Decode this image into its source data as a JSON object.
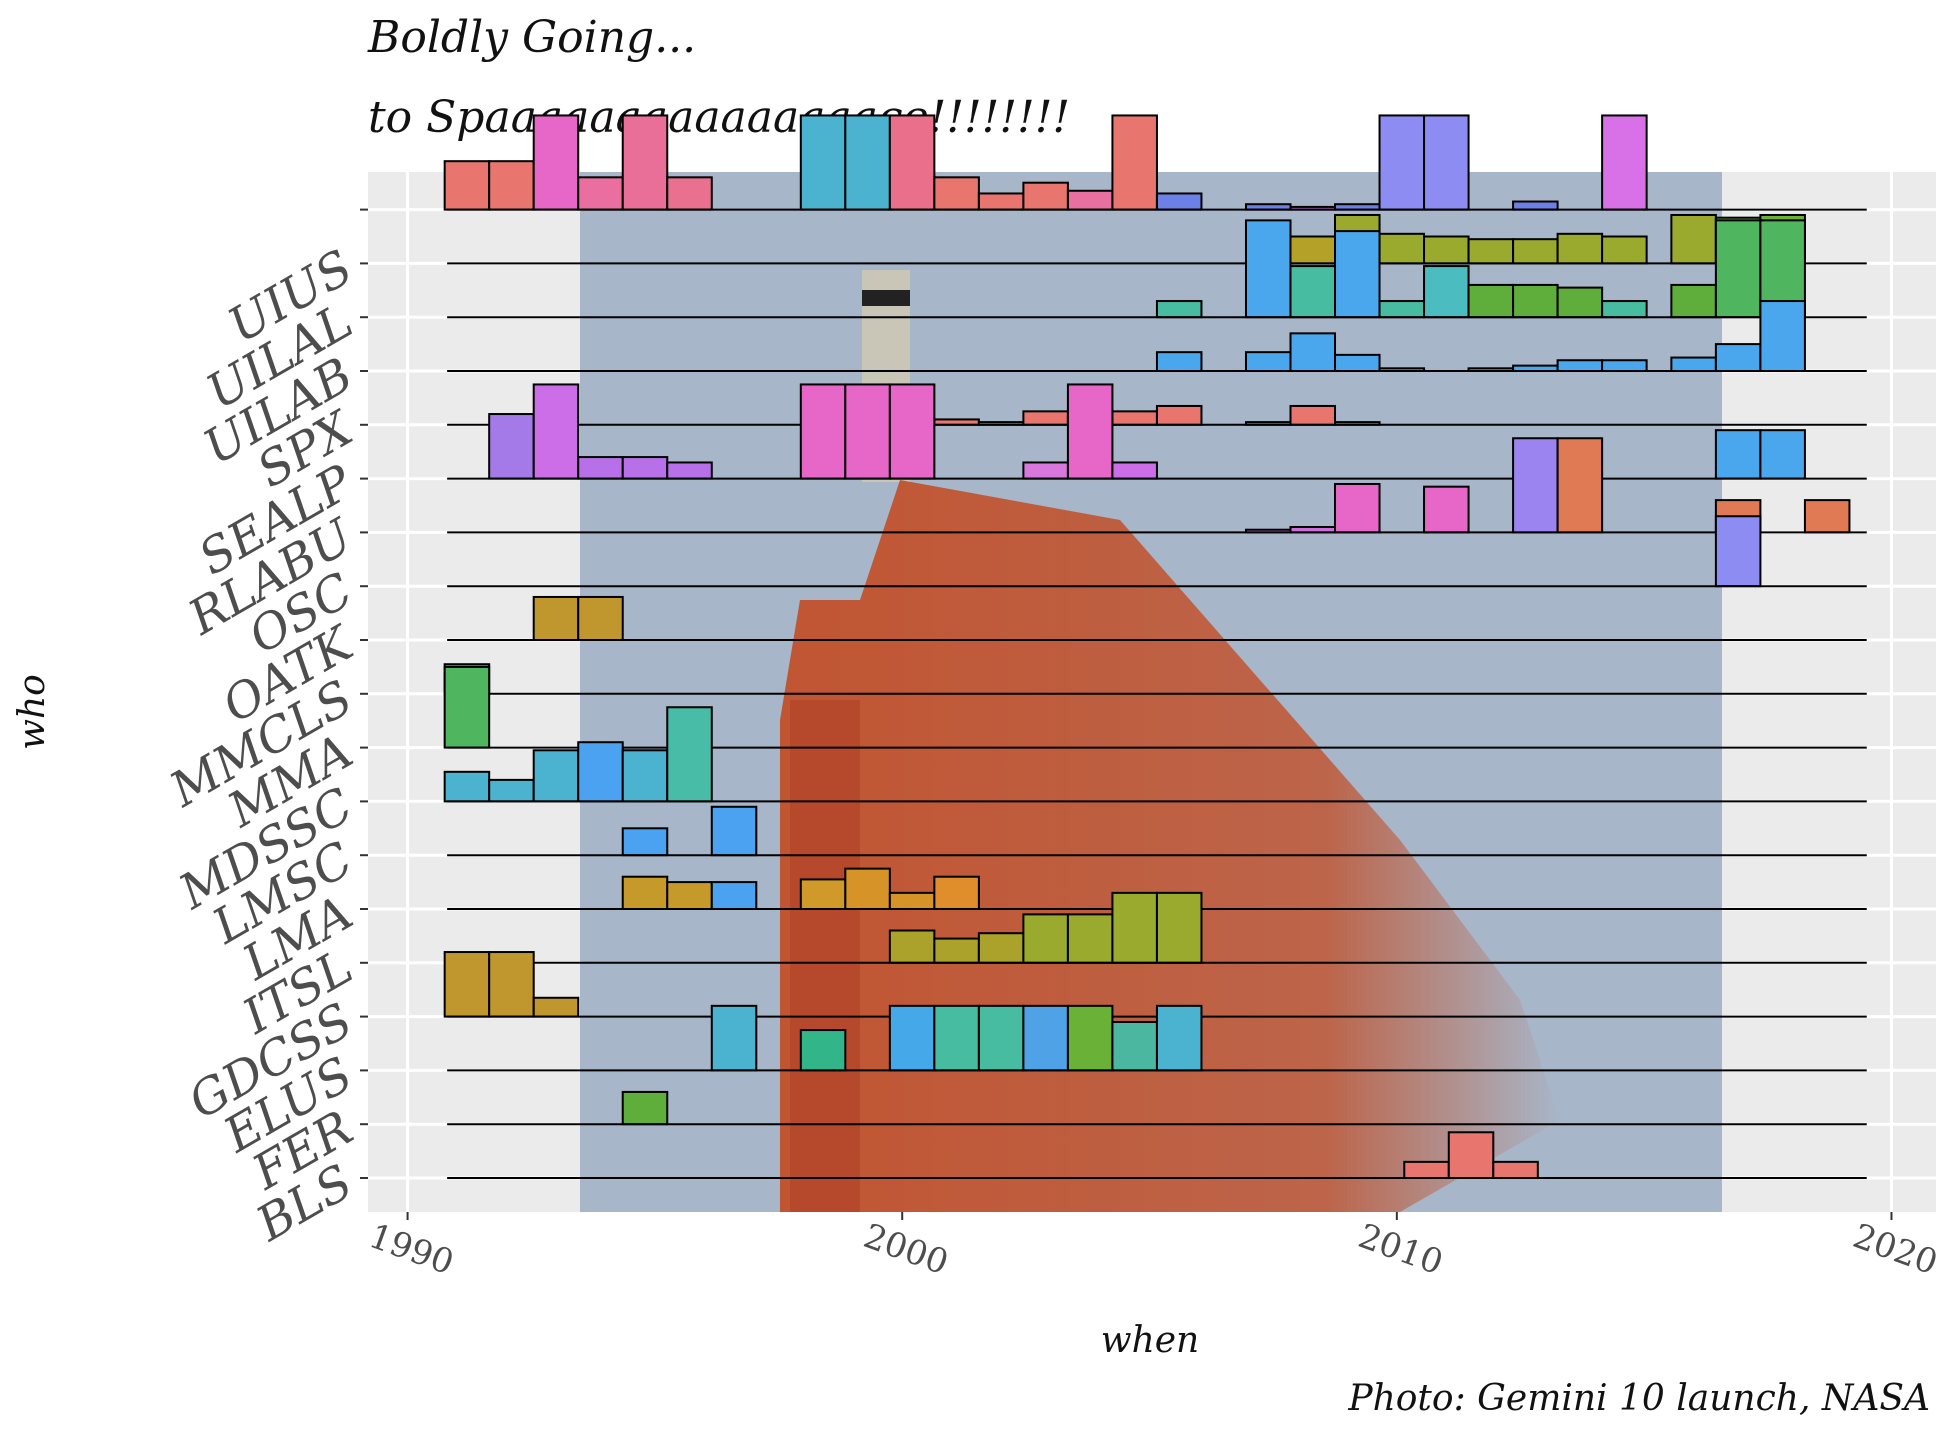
{
  "title_line1": "Boldly Going...",
  "title_line2": "to Spaaaaaaaaaaaaaaace!!!!!!!!",
  "caption": "Photo: Gemini 10 launch, NASA",
  "colors": {
    "panel_bg": "#ebebeb",
    "grid": "#ffffff",
    "sky": "#a7b6c9",
    "tower": "#c2502a",
    "ridge_line": "#000000",
    "axis_text": "#4d4d4d",
    "bar_stroke": "#000000"
  },
  "chart_data": {
    "type": "ridgeline-histogram",
    "title": "Boldly Going... to Spaaaaaaaaaaaaaaace!!!!!!!!",
    "xlabel": "when",
    "ylabel": "who",
    "xlim": [
      1989.2,
      2020.9
    ],
    "x_ticks": [
      1990,
      2000,
      2010,
      2020
    ],
    "x_tick_labels": [
      "1990",
      "2000",
      "2010",
      "2020"
    ],
    "bin_width": 0.9,
    "grid": true,
    "rows": [
      {
        "name": "BLS",
        "bars": [
          {
            "x": 2010.6,
            "h": 0.3,
            "color": "#e8756e"
          },
          {
            "x": 2011.5,
            "h": 0.85,
            "color": "#e8756e"
          },
          {
            "x": 2012.4,
            "h": 0.3,
            "color": "#e8756e"
          }
        ]
      },
      {
        "name": "FER",
        "bars": [
          {
            "x": 1994.8,
            "h": 0.6,
            "color": "#5fad3b"
          }
        ]
      },
      {
        "name": "ELUS",
        "bars": [
          {
            "x": 1996.6,
            "h": 1.2,
            "color": "#4bb3cf"
          },
          {
            "x": 1998.4,
            "h": 0.75,
            "color": "#33b58a"
          },
          {
            "x": 2000.2,
            "h": 1.2,
            "color": "#45a8e8"
          },
          {
            "x": 2001.1,
            "h": 1.2,
            "color": "#47bca0"
          },
          {
            "x": 2002.0,
            "h": 1.2,
            "color": "#47bca0"
          },
          {
            "x": 2002.9,
            "h": 1.2,
            "color": "#4fa2e6"
          },
          {
            "x": 2003.8,
            "h": 1.2,
            "color": "#6ab237"
          },
          {
            "x": 2004.7,
            "h": 0.9,
            "color": "#4cb7a1"
          },
          {
            "x": 2005.6,
            "h": 1.2,
            "color": "#4bb3cf"
          }
        ]
      },
      {
        "name": "GDCSS",
        "bars": [
          {
            "x": 1991.2,
            "h": 1.2,
            "color": "#c0962e"
          },
          {
            "x": 1992.1,
            "h": 1.2,
            "color": "#c0962e"
          },
          {
            "x": 1993.0,
            "h": 0.35,
            "color": "#c0962e"
          }
        ]
      },
      {
        "name": "ITSL",
        "bars": [
          {
            "x": 2000.2,
            "h": 0.6,
            "color": "#aaa22a"
          },
          {
            "x": 2001.1,
            "h": 0.45,
            "color": "#aaa22a"
          },
          {
            "x": 2002.0,
            "h": 0.55,
            "color": "#aaa22a"
          },
          {
            "x": 2002.9,
            "h": 0.9,
            "color": "#9aaa2f"
          },
          {
            "x": 2003.8,
            "h": 0.9,
            "color": "#9aaa2f"
          },
          {
            "x": 2004.7,
            "h": 1.3,
            "color": "#9aaa2f"
          },
          {
            "x": 2005.6,
            "h": 1.3,
            "color": "#9aaa2f"
          }
        ]
      },
      {
        "name": "LMA",
        "bars": [
          {
            "x": 1994.8,
            "h": 0.6,
            "color": "#c69a2a"
          },
          {
            "x": 1995.7,
            "h": 0.5,
            "color": "#c69a2a"
          },
          {
            "x": 1996.6,
            "h": 0.5,
            "color": "#4ba2f0"
          },
          {
            "x": 1998.4,
            "h": 0.55,
            "color": "#cf9a2a"
          },
          {
            "x": 1999.3,
            "h": 0.75,
            "color": "#d69328"
          },
          {
            "x": 2000.2,
            "h": 0.3,
            "color": "#d69328"
          },
          {
            "x": 2001.1,
            "h": 0.6,
            "color": "#e08e2b"
          }
        ]
      },
      {
        "name": "LMSC",
        "bars": [
          {
            "x": 1994.8,
            "h": 0.5,
            "color": "#4ba2f0"
          },
          {
            "x": 1996.6,
            "h": 0.9,
            "color": "#4ba2f0"
          }
        ]
      },
      {
        "name": "MDSSC",
        "bars": [
          {
            "x": 1991.2,
            "h": 0.55,
            "color": "#4bb3cf"
          },
          {
            "x": 1992.1,
            "h": 0.4,
            "color": "#4bb3cf"
          },
          {
            "x": 1993.0,
            "h": 0.95,
            "color": "#4bb3cf"
          },
          {
            "x": 1993.9,
            "h": 1.1,
            "color": "#4ba2f0"
          },
          {
            "x": 1994.8,
            "h": 0.95,
            "color": "#4bb3cf"
          },
          {
            "x": 1995.7,
            "h": 1.75,
            "color": "#48bca6"
          }
        ]
      },
      {
        "name": "MMA",
        "bars": [
          {
            "x": 1991.2,
            "h": 1.5,
            "color": "#4fb65f"
          }
        ]
      },
      {
        "name": "MMCLS",
        "bars": [
          {
            "x": 1991.2,
            "h": 0.55,
            "color": "#4fb65f"
          }
        ]
      },
      {
        "name": "OATK",
        "bars": [
          {
            "x": 1993.0,
            "h": 0.8,
            "color": "#c0962e"
          },
          {
            "x": 1993.9,
            "h": 0.8,
            "color": "#c0962e"
          }
        ]
      },
      {
        "name": "OSC",
        "bars": [
          {
            "x": 2016.9,
            "h": 1.3,
            "color": "#8c8cf2"
          }
        ]
      },
      {
        "name": "RLABU",
        "bars": [
          {
            "x": 2007.4,
            "h": 0.05,
            "color": "#cf6fd8"
          },
          {
            "x": 2008.3,
            "h": 0.1,
            "color": "#cf6fd8"
          },
          {
            "x": 2009.2,
            "h": 0.9,
            "color": "#e767c8"
          },
          {
            "x": 2011.0,
            "h": 0.85,
            "color": "#e767c8"
          },
          {
            "x": 2012.8,
            "h": 1.75,
            "color": "#9c84f0"
          },
          {
            "x": 2013.7,
            "h": 1.75,
            "color": "#e07a55"
          },
          {
            "x": 2016.9,
            "h": 0.6,
            "color": "#e07a55"
          },
          {
            "x": 2018.7,
            "h": 0.6,
            "color": "#e07a55"
          }
        ]
      },
      {
        "name": "SEALP",
        "bars": [
          {
            "x": 1992.1,
            "h": 1.2,
            "color": "#a47ae8"
          },
          {
            "x": 1993.0,
            "h": 1.75,
            "color": "#cb6ee8"
          },
          {
            "x": 1993.9,
            "h": 0.4,
            "color": "#b870e8"
          },
          {
            "x": 1994.8,
            "h": 0.4,
            "color": "#b870e8"
          },
          {
            "x": 1995.7,
            "h": 0.3,
            "color": "#b870e8"
          },
          {
            "x": 1998.4,
            "h": 1.75,
            "color": "#e767c8"
          },
          {
            "x": 1999.3,
            "h": 1.75,
            "color": "#e767c8"
          },
          {
            "x": 2000.2,
            "h": 1.75,
            "color": "#e767c8"
          },
          {
            "x": 2002.9,
            "h": 0.3,
            "color": "#d877dc"
          },
          {
            "x": 2003.8,
            "h": 1.75,
            "color": "#e767c8"
          },
          {
            "x": 2004.7,
            "h": 0.3,
            "color": "#cb6ee8"
          },
          {
            "x": 2016.9,
            "h": 0.9,
            "color": "#4aa6ed"
          },
          {
            "x": 2017.8,
            "h": 0.9,
            "color": "#4aa6ed"
          }
        ]
      },
      {
        "name": "SPX",
        "bars": [
          {
            "x": 2000.2,
            "h": 0.05,
            "color": "#e8756e"
          },
          {
            "x": 2001.1,
            "h": 0.1,
            "color": "#e8756e"
          },
          {
            "x": 2002.0,
            "h": 0.05,
            "color": "#e8756e"
          },
          {
            "x": 2002.9,
            "h": 0.25,
            "color": "#e8756e"
          },
          {
            "x": 2003.8,
            "h": 0.15,
            "color": "#e8756e"
          },
          {
            "x": 2004.7,
            "h": 0.25,
            "color": "#e8756e"
          },
          {
            "x": 2005.6,
            "h": 0.35,
            "color": "#e8756e"
          },
          {
            "x": 2007.4,
            "h": 0.05,
            "color": "#e8756e"
          },
          {
            "x": 2008.3,
            "h": 0.35,
            "color": "#e8756e"
          },
          {
            "x": 2009.2,
            "h": 0.05,
            "color": "#e8756e"
          }
        ]
      },
      {
        "name": "UILAB",
        "bars": [
          {
            "x": 2005.6,
            "h": 0.35,
            "color": "#4aa6ed"
          },
          {
            "x": 2007.4,
            "h": 0.35,
            "color": "#4aa6ed"
          },
          {
            "x": 2008.3,
            "h": 0.7,
            "color": "#4aa6ed"
          },
          {
            "x": 2009.2,
            "h": 0.3,
            "color": "#4aa6ed"
          },
          {
            "x": 2010.1,
            "h": 0.05,
            "color": "#4aa6ed"
          },
          {
            "x": 2011.9,
            "h": 0.05,
            "color": "#4aa6ed"
          },
          {
            "x": 2012.8,
            "h": 0.1,
            "color": "#4aa6ed"
          },
          {
            "x": 2013.7,
            "h": 0.2,
            "color": "#4aa6ed"
          },
          {
            "x": 2014.6,
            "h": 0.2,
            "color": "#4aa6ed"
          },
          {
            "x": 2016.0,
            "h": 0.25,
            "color": "#4aa6ed"
          },
          {
            "x": 2016.9,
            "h": 0.5,
            "color": "#4aa6ed"
          },
          {
            "x": 2017.8,
            "h": 1.3,
            "color": "#4aa6ed"
          }
        ]
      },
      {
        "name": "UILAL",
        "bars": [
          {
            "x": 2005.6,
            "h": 0.3,
            "color": "#47bca0"
          },
          {
            "x": 2007.4,
            "h": 1.8,
            "color": "#4aa6ed"
          },
          {
            "x": 2008.3,
            "h": 0.95,
            "color": "#47bca0"
          },
          {
            "x": 2009.2,
            "h": 1.6,
            "color": "#4aa6ed"
          },
          {
            "x": 2010.1,
            "h": 0.3,
            "color": "#47bca0"
          },
          {
            "x": 2011.0,
            "h": 0.95,
            "color": "#4bbcc0"
          },
          {
            "x": 2011.9,
            "h": 0.6,
            "color": "#5fad3b"
          },
          {
            "x": 2012.8,
            "h": 0.6,
            "color": "#5fad3b"
          },
          {
            "x": 2013.7,
            "h": 0.55,
            "color": "#5fad3b"
          },
          {
            "x": 2014.6,
            "h": 0.3,
            "color": "#47bca0"
          },
          {
            "x": 2016.0,
            "h": 0.6,
            "color": "#5fad3b"
          },
          {
            "x": 2016.9,
            "h": 1.8,
            "color": "#4fb65f"
          },
          {
            "x": 2017.8,
            "h": 1.8,
            "color": "#4fb65f"
          }
        ]
      },
      {
        "name": "UIUS",
        "bars": [
          {
            "x": 2008.3,
            "h": 0.5,
            "color": "#b3a227"
          },
          {
            "x": 2009.2,
            "h": 0.9,
            "color": "#9aaa2f"
          },
          {
            "x": 2010.1,
            "h": 0.55,
            "color": "#9aaa2f"
          },
          {
            "x": 2011.0,
            "h": 0.5,
            "color": "#9aaa2f"
          },
          {
            "x": 2011.9,
            "h": 0.45,
            "color": "#9aaa2f"
          },
          {
            "x": 2012.8,
            "h": 0.45,
            "color": "#9aaa2f"
          },
          {
            "x": 2013.7,
            "h": 0.55,
            "color": "#9aaa2f"
          },
          {
            "x": 2014.6,
            "h": 0.5,
            "color": "#9aaa2f"
          },
          {
            "x": 2016.0,
            "h": 0.9,
            "color": "#9aaa2f"
          },
          {
            "x": 2016.9,
            "h": 0.85,
            "color": "#6ab237"
          },
          {
            "x": 2017.8,
            "h": 0.9,
            "color": "#6ab237"
          }
        ]
      },
      {
        "name": "",
        "bars": [
          {
            "x": 1991.2,
            "h": 0.9,
            "color": "#e8756e"
          },
          {
            "x": 1992.1,
            "h": 0.9,
            "color": "#e8756e"
          },
          {
            "x": 1993.0,
            "h": 1.75,
            "color": "#e767c8"
          },
          {
            "x": 1993.9,
            "h": 0.6,
            "color": "#ea6fa0"
          },
          {
            "x": 1994.8,
            "h": 1.75,
            "color": "#ea6f98"
          },
          {
            "x": 1995.7,
            "h": 0.6,
            "color": "#ea7090"
          },
          {
            "x": 1998.4,
            "h": 1.75,
            "color": "#4bb3cf"
          },
          {
            "x": 1999.3,
            "h": 1.75,
            "color": "#4bb3cf"
          },
          {
            "x": 2000.2,
            "h": 1.75,
            "color": "#ea6f8a"
          },
          {
            "x": 2001.1,
            "h": 0.6,
            "color": "#e8756e"
          },
          {
            "x": 2002.0,
            "h": 0.3,
            "color": "#e8756e"
          },
          {
            "x": 2002.9,
            "h": 0.5,
            "color": "#e8756e"
          },
          {
            "x": 2003.8,
            "h": 0.35,
            "color": "#e870a0"
          },
          {
            "x": 2004.7,
            "h": 1.75,
            "color": "#e8756e"
          },
          {
            "x": 2005.6,
            "h": 0.3,
            "color": "#6d80e8"
          },
          {
            "x": 2007.4,
            "h": 0.1,
            "color": "#6d80e8"
          },
          {
            "x": 2008.3,
            "h": 0.05,
            "color": "#cf6fd8"
          },
          {
            "x": 2009.2,
            "h": 0.1,
            "color": "#6d80e8"
          },
          {
            "x": 2010.1,
            "h": 1.75,
            "color": "#8c8cf2"
          },
          {
            "x": 2011.0,
            "h": 1.75,
            "color": "#8c8cf2"
          },
          {
            "x": 2012.8,
            "h": 0.15,
            "color": "#6d80e8"
          },
          {
            "x": 2014.6,
            "h": 1.75,
            "color": "#d870e8"
          }
        ]
      }
    ]
  }
}
